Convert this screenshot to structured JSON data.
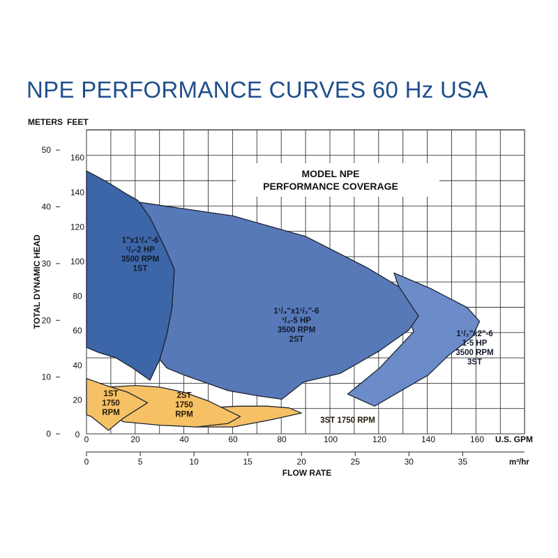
{
  "title": "NPE PERFORMANCE CURVES 60 Hz USA",
  "chart_data": {
    "type": "area",
    "title": "MODEL NPE PERFORMANCE COVERAGE",
    "title_lines": [
      "MODEL NPE",
      "PERFORMANCE COVERAGE"
    ],
    "head_units": [
      "METERS",
      "FEET"
    ],
    "ylabel": "TOTAL DYNAMIC HEAD",
    "xlabel": "FLOW RATE",
    "x_unit_gpm": "U.S. GPM",
    "x_unit_m3hr": "m³/hr",
    "xlim_gpm": [
      0,
      180
    ],
    "ylim_feet": [
      0,
      170
    ],
    "grid": true,
    "x_ticks_gpm": [
      0,
      20,
      40,
      60,
      80,
      100,
      120,
      140,
      160
    ],
    "x_ticks_m3hr": [
      0,
      5,
      10,
      15,
      20,
      25,
      30,
      35
    ],
    "y_ticks_feet": [
      0,
      20,
      40,
      60,
      80,
      100,
      120,
      140,
      160
    ],
    "y_ticks_meters": [
      0,
      10,
      20,
      30,
      40,
      50
    ],
    "colors": {
      "blue_dark": "#3c66a8",
      "blue_mid": "#5879b8",
      "blue_light": "#6b8cc9",
      "orange": "#f6c165",
      "outline": "#1a2230",
      "title": "#1f4e8c"
    },
    "regions": [
      {
        "id": "1st-3500",
        "color": "blue_dark",
        "label_lines": [
          "1\"x1¹/₄\"-6",
          "¹/₂-2 HP",
          "3500 RPM",
          "1ST"
        ],
        "label_at": [
          22,
          104
        ],
        "points": [
          [
            0,
            152
          ],
          [
            8,
            146
          ],
          [
            16,
            139
          ],
          [
            21,
            135
          ],
          [
            26,
            125
          ],
          [
            32,
            108
          ],
          [
            36,
            95
          ],
          [
            35,
            73
          ],
          [
            33,
            58
          ],
          [
            30,
            43
          ],
          [
            26,
            31
          ],
          [
            19,
            38
          ],
          [
            12,
            44
          ],
          [
            5,
            47
          ],
          [
            0,
            50
          ]
        ]
      },
      {
        "id": "2st-3500",
        "color": "blue_mid",
        "label_lines": [
          "1¹/₄\"x1¹/₂\"-6",
          "³/₄-5 HP",
          "3500 RPM",
          "2ST"
        ],
        "label_at": [
          86,
          63
        ],
        "points": [
          [
            21,
            134
          ],
          [
            60,
            126
          ],
          [
            90,
            114
          ],
          [
            115,
            96
          ],
          [
            128,
            85
          ],
          [
            136,
            68
          ],
          [
            132,
            60
          ],
          [
            120,
            48
          ],
          [
            104,
            35
          ],
          [
            89,
            30
          ],
          [
            80,
            20
          ],
          [
            70,
            22
          ],
          [
            58,
            25
          ],
          [
            46,
            31
          ],
          [
            40,
            34
          ],
          [
            33,
            38
          ],
          [
            30,
            43
          ],
          [
            33,
            58
          ],
          [
            35,
            73
          ],
          [
            36,
            95
          ],
          [
            32,
            108
          ],
          [
            26,
            125
          ]
        ]
      },
      {
        "id": "3st-3500",
        "color": "blue_light",
        "label_lines": [
          "1¹/₂\"x2\"-6",
          "1-5 HP",
          "3500 RPM",
          "3ST"
        ],
        "label_at": [
          159,
          50
        ],
        "points": [
          [
            126,
            93
          ],
          [
            141,
            84
          ],
          [
            156,
            73
          ],
          [
            161,
            65
          ],
          [
            158,
            56
          ],
          [
            148,
            45
          ],
          [
            140,
            34
          ],
          [
            118,
            16
          ],
          [
            107,
            23
          ],
          [
            120,
            38
          ],
          [
            134,
            59
          ]
        ]
      },
      {
        "id": "3st-1750",
        "color": "orange",
        "label_lines": [
          "3ST 1750 RPM"
        ],
        "label_at": [
          107,
          8
        ],
        "points": [
          [
            18,
            12
          ],
          [
            35,
            14
          ],
          [
            50,
            15
          ],
          [
            62,
            16
          ],
          [
            74,
            16
          ],
          [
            83,
            15
          ],
          [
            88,
            12
          ],
          [
            75,
            8
          ],
          [
            60,
            4
          ],
          [
            45,
            4
          ],
          [
            30,
            6
          ],
          [
            18,
            8
          ]
        ]
      },
      {
        "id": "2st-1750",
        "color": "orange",
        "label_lines": [
          "2ST",
          "1750",
          "RPM"
        ],
        "label_at": [
          40,
          17
        ],
        "points": [
          [
            9,
            27
          ],
          [
            20,
            28
          ],
          [
            30,
            27
          ],
          [
            40,
            24
          ],
          [
            50,
            19
          ],
          [
            63,
            10
          ],
          [
            58,
            6
          ],
          [
            45,
            4
          ],
          [
            30,
            5
          ],
          [
            15,
            7
          ],
          [
            8,
            14
          ]
        ]
      },
      {
        "id": "1st-1750",
        "color": "orange",
        "label_lines": [
          "1ST",
          "1750",
          "RPM"
        ],
        "label_at": [
          10,
          18
        ],
        "points": [
          [
            0,
            32
          ],
          [
            8,
            28
          ],
          [
            17,
            24
          ],
          [
            25,
            18
          ],
          [
            15,
            9
          ],
          [
            9,
            2
          ],
          [
            2,
            10
          ],
          [
            0,
            11
          ]
        ]
      }
    ]
  }
}
